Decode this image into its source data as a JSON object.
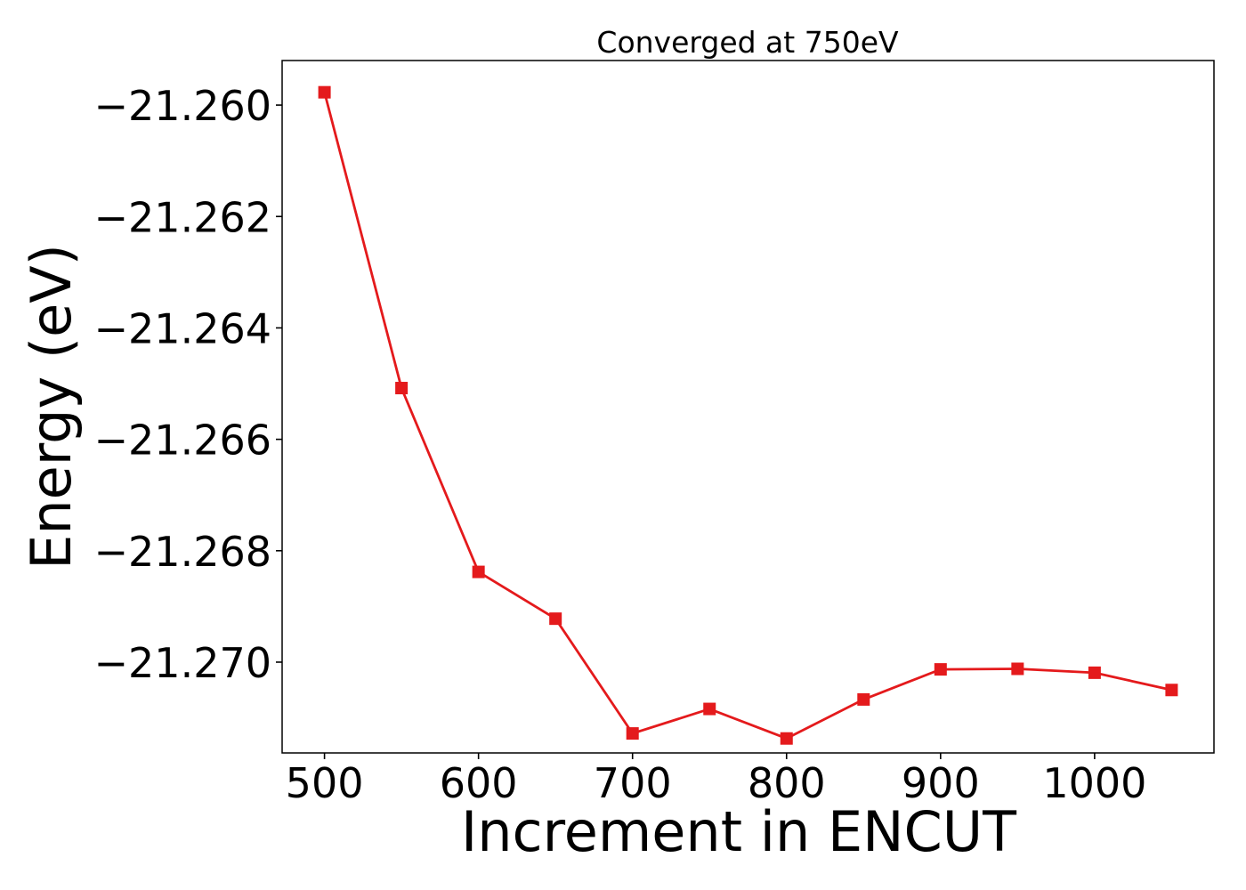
{
  "chart_data": {
    "type": "line",
    "title": "Converged at 750eV",
    "xlabel": "Increment in ENCUT",
    "ylabel": "Energy (eV)",
    "x": [
      500,
      550,
      600,
      650,
      700,
      750,
      800,
      850,
      900,
      950,
      1000,
      1050
    ],
    "series": [
      {
        "values": [
          -21.25977,
          -21.26508,
          -21.26838,
          -21.26922,
          -21.27128,
          -21.27084,
          -21.27137,
          -21.27067,
          -21.27013,
          -21.27012,
          -21.27019,
          -21.2705
        ],
        "color": "#e41a1c",
        "marker": "square"
      }
    ],
    "xticks": [
      500,
      600,
      700,
      800,
      900,
      1000
    ],
    "xtick_labels": [
      "500",
      "600",
      "700",
      "800",
      "900",
      "1000"
    ],
    "yticks": [
      -21.26,
      -21.262,
      -21.264,
      -21.266,
      -21.268,
      -21.27
    ],
    "ytick_labels": [
      "−21.260",
      "−21.262",
      "−21.264",
      "−21.266",
      "−21.268",
      "−21.270"
    ],
    "xlim": [
      472.5,
      1077.5
    ],
    "ylim": [
      -21.27163,
      -21.2592
    ],
    "grid": false,
    "legend": false
  }
}
